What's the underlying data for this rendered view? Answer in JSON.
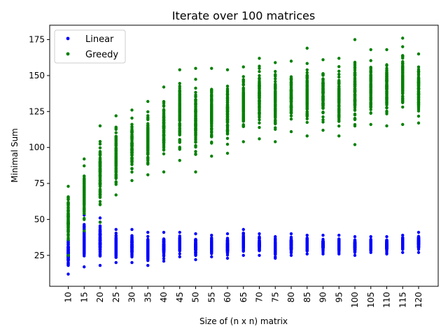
{
  "chart_data": {
    "type": "scatter",
    "title": "Iterate over 100 matrices",
    "xlabel": "Size of (n x n) matrix",
    "ylabel": "Minimal Sum",
    "x_categories": [
      "10",
      "15",
      "20",
      "25",
      "30",
      "35",
      "40",
      "45",
      "50",
      "55",
      "60",
      "65",
      "70",
      "75",
      "80",
      "85",
      "90",
      "95",
      "100",
      "105",
      "110",
      "115",
      "120"
    ],
    "ylim": [
      3.5,
      185
    ],
    "yticks": [
      25,
      50,
      75,
      100,
      125,
      150,
      175
    ],
    "grid": false,
    "legend": "upper-left",
    "series": [
      {
        "name": "Linear",
        "color": "#0000ff",
        "ranges": [
          [
            12,
            42
          ],
          [
            17,
            53
          ],
          [
            18,
            51
          ],
          [
            20,
            43
          ],
          [
            20,
            43
          ],
          [
            18,
            41
          ],
          [
            21,
            41
          ],
          [
            24,
            41
          ],
          [
            22,
            40
          ],
          [
            24,
            39
          ],
          [
            23,
            40
          ],
          [
            25,
            43
          ],
          [
            25,
            40
          ],
          [
            23,
            38
          ],
          [
            25,
            40
          ],
          [
            26,
            39
          ],
          [
            26,
            39
          ],
          [
            26,
            39
          ],
          [
            25,
            38
          ],
          [
            27,
            38
          ],
          [
            26,
            38
          ],
          [
            27,
            39
          ],
          [
            27,
            41
          ]
        ],
        "points_per_x": 100
      },
      {
        "name": "Greedy",
        "color": "#008000",
        "ranges": [
          [
            25,
            73
          ],
          [
            42,
            92
          ],
          [
            48,
            115
          ],
          [
            67,
            122
          ],
          [
            77,
            126
          ],
          [
            81,
            132
          ],
          [
            83,
            142
          ],
          [
            91,
            154
          ],
          [
            83,
            155
          ],
          [
            94,
            155
          ],
          [
            96,
            154
          ],
          [
            104,
            156
          ],
          [
            106,
            162
          ],
          [
            104,
            159
          ],
          [
            111,
            160
          ],
          [
            108,
            169
          ],
          [
            112,
            161
          ],
          [
            108,
            162
          ],
          [
            102,
            175
          ],
          [
            116,
            168
          ],
          [
            115,
            168
          ],
          [
            116,
            176
          ],
          [
            117,
            165
          ]
        ],
        "points_per_x": 100
      }
    ]
  }
}
